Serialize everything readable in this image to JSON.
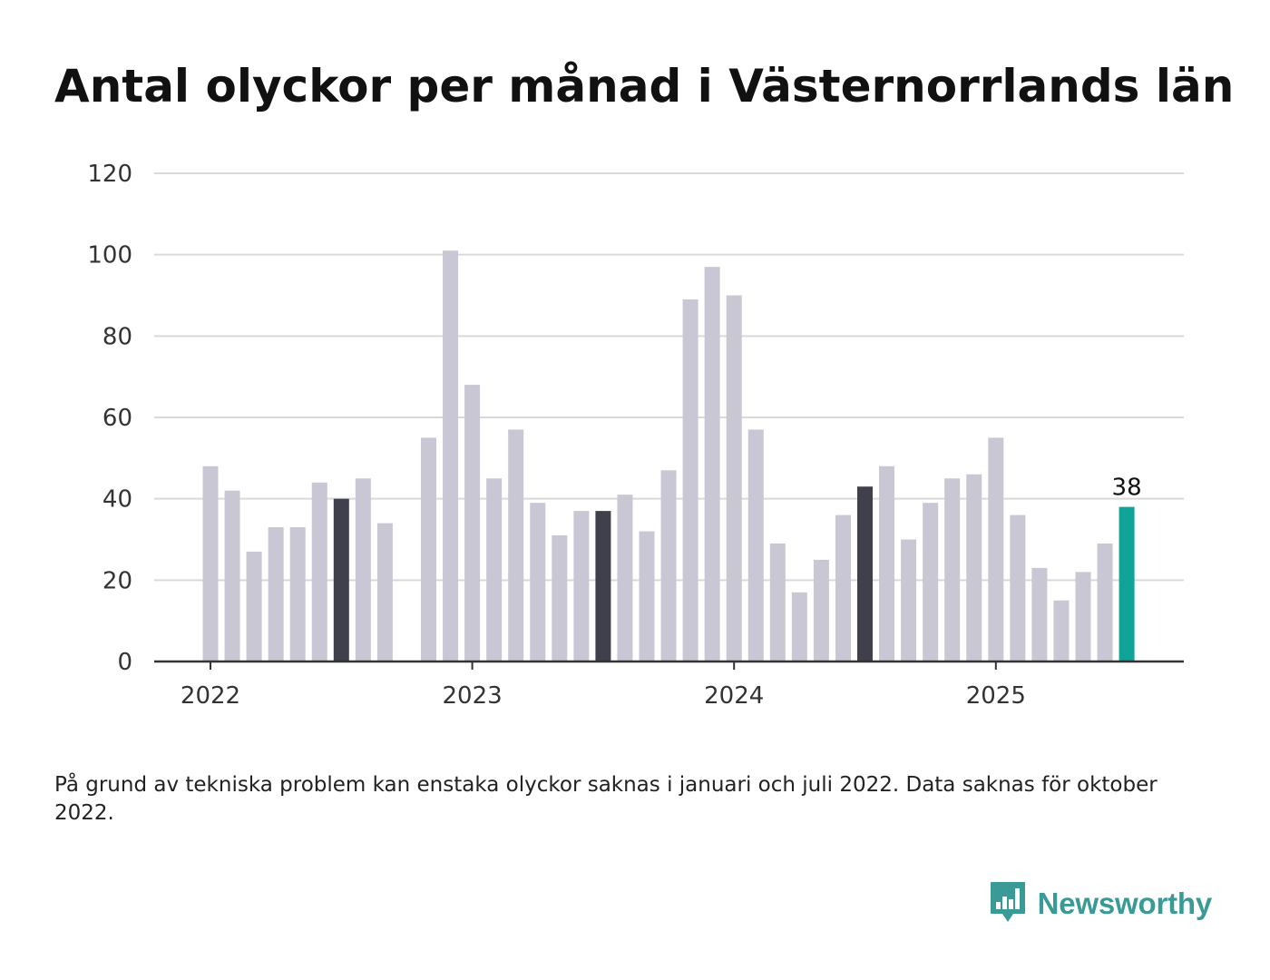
{
  "title": "Antal olyckor per månad i Västernorrlands län",
  "footnote": "På grund av tekniska problem kan enstaka olyckor saknas i januari och juli 2022. Data saknas för oktober 2022.",
  "brand": {
    "name": "Newsworthy",
    "color": "#3a9a96"
  },
  "colors": {
    "default_bar": "#c8c7d3",
    "july_bar": "#403f4c",
    "latest_bar": "#10a498",
    "grid": "#d9d9d9",
    "axis": "#333333"
  },
  "chart_data": {
    "type": "bar",
    "title": "Antal olyckor per månad i Västernorrlands län",
    "xlabel": "",
    "ylabel": "",
    "ylim": [
      0,
      120
    ],
    "yticks": [
      0,
      20,
      40,
      60,
      80,
      100,
      120
    ],
    "xtick_labels": [
      {
        "label": "2022",
        "category": "2022-01"
      },
      {
        "label": "2023",
        "category": "2023-01"
      },
      {
        "label": "2024",
        "category": "2024-01"
      },
      {
        "label": "2025",
        "category": "2025-01"
      }
    ],
    "grid": true,
    "categories": [
      "2022-01",
      "2022-02",
      "2022-03",
      "2022-04",
      "2022-05",
      "2022-06",
      "2022-07",
      "2022-08",
      "2022-09",
      "2022-10",
      "2022-11",
      "2022-12",
      "2023-01",
      "2023-02",
      "2023-03",
      "2023-04",
      "2023-05",
      "2023-06",
      "2023-07",
      "2023-08",
      "2023-09",
      "2023-10",
      "2023-11",
      "2023-12",
      "2024-01",
      "2024-02",
      "2024-03",
      "2024-04",
      "2024-05",
      "2024-06",
      "2024-07",
      "2024-08",
      "2024-09",
      "2024-10",
      "2024-11",
      "2024-12",
      "2025-01",
      "2025-02",
      "2025-03",
      "2025-04",
      "2025-05",
      "2025-06",
      "2025-07"
    ],
    "values": [
      48,
      42,
      27,
      33,
      33,
      44,
      40,
      45,
      34,
      null,
      55,
      101,
      68,
      45,
      57,
      39,
      31,
      37,
      37,
      41,
      32,
      47,
      89,
      97,
      90,
      57,
      29,
      17,
      25,
      36,
      43,
      48,
      30,
      39,
      45,
      46,
      55,
      36,
      23,
      15,
      22,
      29,
      38
    ],
    "highlighted_july": [
      "2022-07",
      "2023-07",
      "2024-07"
    ],
    "latest": {
      "category": "2025-07",
      "value": 38,
      "label": "38"
    }
  }
}
